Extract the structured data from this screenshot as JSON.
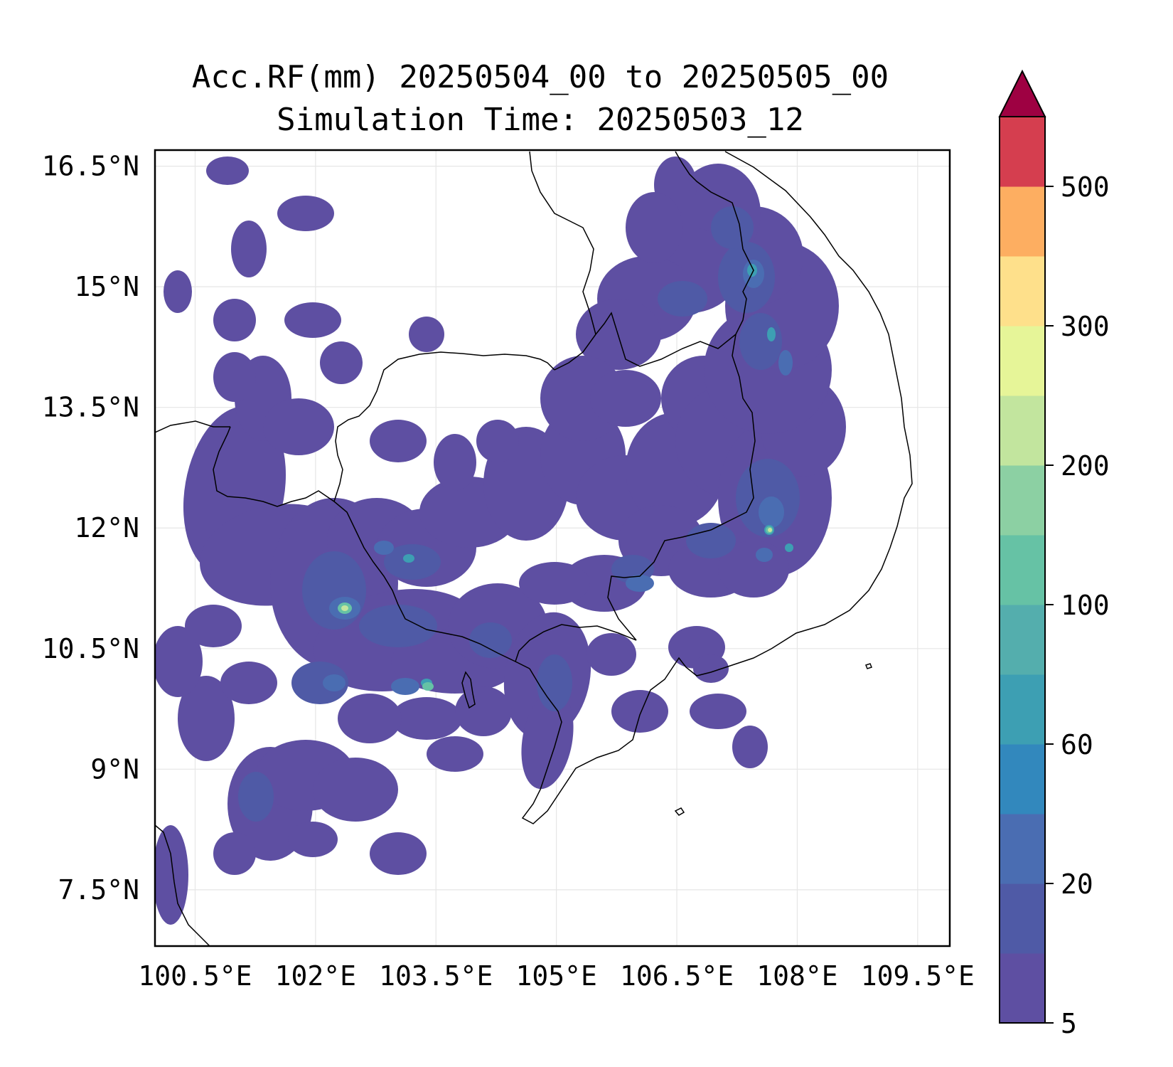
{
  "title_line1": "Acc.RF(mm) 20250504_00 to 20250505_00",
  "title_line2": "Simulation Time: 20250503_12",
  "map": {
    "lon_range": [
      100.0,
      109.9
    ],
    "lat_range": [
      6.8,
      16.7
    ],
    "lon_ticks": [
      {
        "value": 100.5,
        "label": "100.5°E"
      },
      {
        "value": 102,
        "label": "102°E"
      },
      {
        "value": 103.5,
        "label": "103.5°E"
      },
      {
        "value": 105,
        "label": "105°E"
      },
      {
        "value": 106.5,
        "label": "106.5°E"
      },
      {
        "value": 108,
        "label": "108°E"
      },
      {
        "value": 109.5,
        "label": "109.5°E"
      }
    ],
    "lat_ticks": [
      {
        "value": 16.5,
        "label": "16.5°N"
      },
      {
        "value": 15,
        "label": "15°N"
      },
      {
        "value": 13.5,
        "label": "13.5°N"
      },
      {
        "value": 12,
        "label": "12°N"
      },
      {
        "value": 10.5,
        "label": "10.5°N"
      },
      {
        "value": 9,
        "label": "9°N"
      },
      {
        "value": 7.5,
        "label": "7.5°N"
      }
    ],
    "grid": true
  },
  "colorbar": {
    "levels": [
      5,
      10,
      20,
      40,
      60,
      80,
      100,
      150,
      200,
      250,
      300,
      400,
      500
    ],
    "labeled_levels": [
      {
        "index": 0,
        "label": "5"
      },
      {
        "index": 2,
        "label": "20"
      },
      {
        "index": 4,
        "label": "60"
      },
      {
        "index": 6,
        "label": "100"
      },
      {
        "index": 8,
        "label": "200"
      },
      {
        "index": 10,
        "label": "300"
      },
      {
        "index": 12,
        "label": "500"
      }
    ],
    "colors": [
      "#5e4fa2",
      "#4f5aa6",
      "#4a6db2",
      "#3288bd",
      "#3d9fb3",
      "#54aead",
      "#66c2a5",
      "#8cd0a3",
      "#c2e59e",
      "#e6f598",
      "#fee08b",
      "#fdae61",
      "#d53e4f"
    ],
    "over_color": "#9e0142",
    "extend": "max"
  },
  "rain_colors": {
    "level1": "#5e4fa2",
    "level2": "#4f5aa6",
    "level3": "#4a6db2",
    "level4": "#3d9fb3",
    "level5": "#66c2a5",
    "level6": "#c2e59e"
  }
}
